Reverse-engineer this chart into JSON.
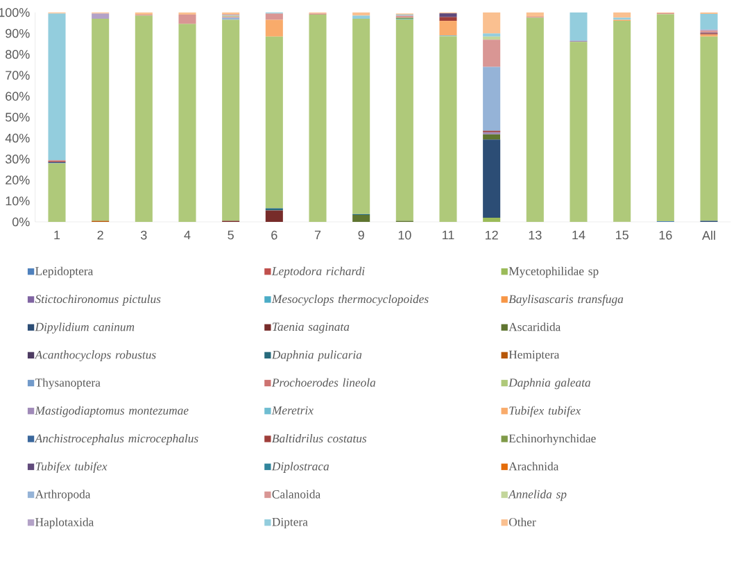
{
  "chart_data": {
    "type": "bar",
    "stacked": true,
    "legend": "bottom",
    "grid": false,
    "categories": [
      "1",
      "2",
      "3",
      "4",
      "5",
      "6",
      "7",
      "9",
      "10",
      "11",
      "12",
      "13",
      "14",
      "15",
      "16",
      "All"
    ],
    "ylim": [
      0,
      100
    ],
    "yticks": [
      {
        "value": 0,
        "label": "0%"
      },
      {
        "value": 10,
        "label": "10%"
      },
      {
        "value": 20,
        "label": "20%"
      },
      {
        "value": 30,
        "label": "30%"
      },
      {
        "value": 40,
        "label": "40%"
      },
      {
        "value": 50,
        "label": "50%"
      },
      {
        "value": 60,
        "label": "60%"
      },
      {
        "value": 70,
        "label": "70%"
      },
      {
        "value": 80,
        "label": "80%"
      },
      {
        "value": 90,
        "label": "90%"
      },
      {
        "value": 100,
        "label": "100%"
      }
    ],
    "series": [
      {
        "name": "Lepidoptera",
        "color": "#4f81bd",
        "values": [
          null,
          null,
          null,
          null,
          null,
          null,
          null,
          null,
          null,
          null,
          null,
          null,
          null,
          null,
          0.3,
          null
        ]
      },
      {
        "name": "*Leptodora richardi*",
        "color": "#c0504d",
        "values": [
          null,
          null,
          null,
          null,
          null,
          null,
          null,
          null,
          null,
          null,
          null,
          null,
          null,
          null,
          null,
          null
        ]
      },
      {
        "name": "Mycetophilidae sp",
        "color": "#9bbb59",
        "values": [
          null,
          null,
          null,
          null,
          null,
          null,
          null,
          null,
          null,
          null,
          2,
          null,
          null,
          0.2,
          null,
          null
        ]
      },
      {
        "name": "*Stictochironomus pictulus*",
        "color": "#8064a2",
        "values": [
          null,
          null,
          null,
          null,
          null,
          null,
          null,
          null,
          null,
          null,
          null,
          null,
          null,
          null,
          null,
          null
        ]
      },
      {
        "name": "*Mesocyclops thermocyclopoides*",
        "color": "#4bacc6",
        "values": [
          null,
          null,
          null,
          null,
          null,
          null,
          null,
          null,
          null,
          null,
          null,
          null,
          null,
          null,
          null,
          null
        ]
      },
      {
        "name": "*Baylisascaris transfuga*",
        "color": "#f79646",
        "values": [
          null,
          null,
          null,
          null,
          null,
          null,
          null,
          null,
          null,
          null,
          null,
          null,
          null,
          null,
          null,
          null
        ]
      },
      {
        "name": "*Dipylidium caninum*",
        "color": "#2c4d75",
        "values": [
          null,
          null,
          null,
          null,
          null,
          null,
          null,
          null,
          null,
          null,
          37.3,
          null,
          null,
          null,
          null,
          0.5
        ]
      },
      {
        "name": "*Taenia saginata*",
        "color": "#772c2a",
        "values": [
          null,
          null,
          null,
          null,
          0.5,
          5.5,
          null,
          null,
          null,
          null,
          null,
          null,
          null,
          null,
          null,
          null
        ]
      },
      {
        "name": "Ascaridida",
        "color": "#5f7530",
        "values": [
          null,
          null,
          null,
          null,
          null,
          null,
          null,
          3.3,
          0.5,
          null,
          2.5,
          null,
          null,
          null,
          null,
          null
        ]
      },
      {
        "name": "*Acanthocyclops robustus*",
        "color": "#4d3b62",
        "values": [
          null,
          null,
          null,
          null,
          null,
          null,
          null,
          null,
          null,
          null,
          null,
          null,
          null,
          null,
          null,
          null
        ]
      },
      {
        "name": "*Daphnia pulicaria*",
        "color": "#276a7c",
        "values": [
          null,
          null,
          null,
          null,
          null,
          1,
          null,
          0.4,
          null,
          null,
          null,
          null,
          null,
          null,
          null,
          null
        ]
      },
      {
        "name": "Hemiptera",
        "color": "#b65708",
        "values": [
          null,
          0.5,
          null,
          null,
          null,
          null,
          null,
          null,
          null,
          null,
          null,
          null,
          null,
          null,
          null,
          null
        ]
      },
      {
        "name": "Thysanoptera",
        "color": "#729aca",
        "values": [
          null,
          null,
          null,
          null,
          null,
          null,
          null,
          null,
          null,
          null,
          null,
          null,
          null,
          null,
          null,
          null
        ]
      },
      {
        "name": "*Prochoerodes lineola*",
        "color": "#cd7371",
        "values": [
          null,
          null,
          null,
          null,
          null,
          null,
          null,
          null,
          null,
          null,
          null,
          null,
          null,
          null,
          null,
          null
        ]
      },
      {
        "name": "*Daphnia galeata*",
        "color": "#afc97a",
        "values": [
          28,
          96.5,
          98.5,
          94.5,
          96,
          82,
          99,
          93.3,
          96.2,
          88.7,
          null,
          97.5,
          86,
          95.8,
          98.9,
          88
        ]
      },
      {
        "name": "*Mastigodiaptomus montezumae*",
        "color": "#a08ab8",
        "values": [
          null,
          null,
          null,
          null,
          null,
          null,
          null,
          null,
          null,
          null,
          1,
          null,
          0.5,
          null,
          null,
          null
        ]
      },
      {
        "name": "*Meretrix*",
        "color": "#6fbdd1",
        "values": [
          null,
          null,
          null,
          null,
          null,
          null,
          null,
          null,
          0.3,
          0.3,
          null,
          null,
          null,
          null,
          null,
          null
        ]
      },
      {
        "name": "*Tubifex tubifex*",
        "color": "#f9ab6b",
        "values": [
          null,
          null,
          null,
          null,
          null,
          8,
          null,
          null,
          null,
          7,
          null,
          null,
          null,
          0.5,
          null,
          1
        ]
      },
      {
        "name": "*Anchistrocephalus microcephalus*",
        "color": "#3a679c",
        "values": [
          0.5,
          null,
          null,
          null,
          null,
          null,
          null,
          null,
          null,
          null,
          null,
          null,
          null,
          null,
          null,
          null
        ]
      },
      {
        "name": "*Baltidrilus costatus*",
        "color": "#9f3e3a",
        "values": [
          0.5,
          null,
          null,
          null,
          null,
          null,
          null,
          null,
          null,
          1.8,
          0.7,
          null,
          null,
          null,
          null,
          0.5
        ]
      },
      {
        "name": "Echinorhynchidae",
        "color": "#7f9a48",
        "values": [
          null,
          null,
          null,
          null,
          null,
          null,
          null,
          null,
          0.5,
          null,
          null,
          null,
          null,
          null,
          null,
          null
        ]
      },
      {
        "name": "*Tubifex tubifex*",
        "color": "#604a7b",
        "values": [
          null,
          null,
          null,
          null,
          null,
          null,
          null,
          null,
          null,
          1.8,
          null,
          null,
          null,
          null,
          null,
          0.3
        ]
      },
      {
        "name": "*Diplostraca*",
        "color": "#31859c",
        "values": [
          null,
          null,
          null,
          null,
          null,
          null,
          null,
          null,
          null,
          null,
          null,
          null,
          null,
          null,
          null,
          null
        ]
      },
      {
        "name": "Arachnida",
        "color": "#e46c0a",
        "values": [
          null,
          null,
          null,
          null,
          null,
          null,
          null,
          null,
          null,
          null,
          null,
          null,
          null,
          null,
          null,
          null
        ]
      },
      {
        "name": "Arthropoda",
        "color": "#95b3d7",
        "values": [
          null,
          null,
          null,
          null,
          1,
          null,
          null,
          null,
          null,
          null,
          30.5,
          null,
          null,
          null,
          null,
          null
        ]
      },
      {
        "name": "Calanoida",
        "color": "#d99694",
        "values": [
          0.5,
          null,
          0.5,
          4.5,
          0.5,
          3,
          0.5,
          null,
          1,
          null,
          13,
          0.5,
          null,
          null,
          0.5,
          1
        ]
      },
      {
        "name": "*Annelida sp*",
        "color": "#c3d69b",
        "values": [
          null,
          null,
          null,
          null,
          0.5,
          null,
          null,
          null,
          null,
          null,
          1.5,
          null,
          null,
          null,
          null,
          null
        ]
      },
      {
        "name": "Haplotaxida",
        "color": "#b3a2c7",
        "values": [
          null,
          2.5,
          null,
          null,
          0.5,
          null,
          null,
          null,
          null,
          null,
          null,
          null,
          null,
          null,
          null,
          0.5
        ]
      },
      {
        "name": "Diptera",
        "color": "#93cddd",
        "values": [
          70,
          null,
          null,
          null,
          null,
          0.5,
          null,
          1.5,
          0.5,
          null,
          1.5,
          null,
          13.5,
          1,
          null,
          7.5
        ]
      },
      {
        "name": "Other",
        "color": "#fac090",
        "values": [
          0.5,
          0.5,
          1,
          1,
          1,
          null,
          0.5,
          1.5,
          0.5,
          0.4,
          10,
          2,
          null,
          2.5,
          0.3,
          0.7
        ]
      }
    ]
  }
}
